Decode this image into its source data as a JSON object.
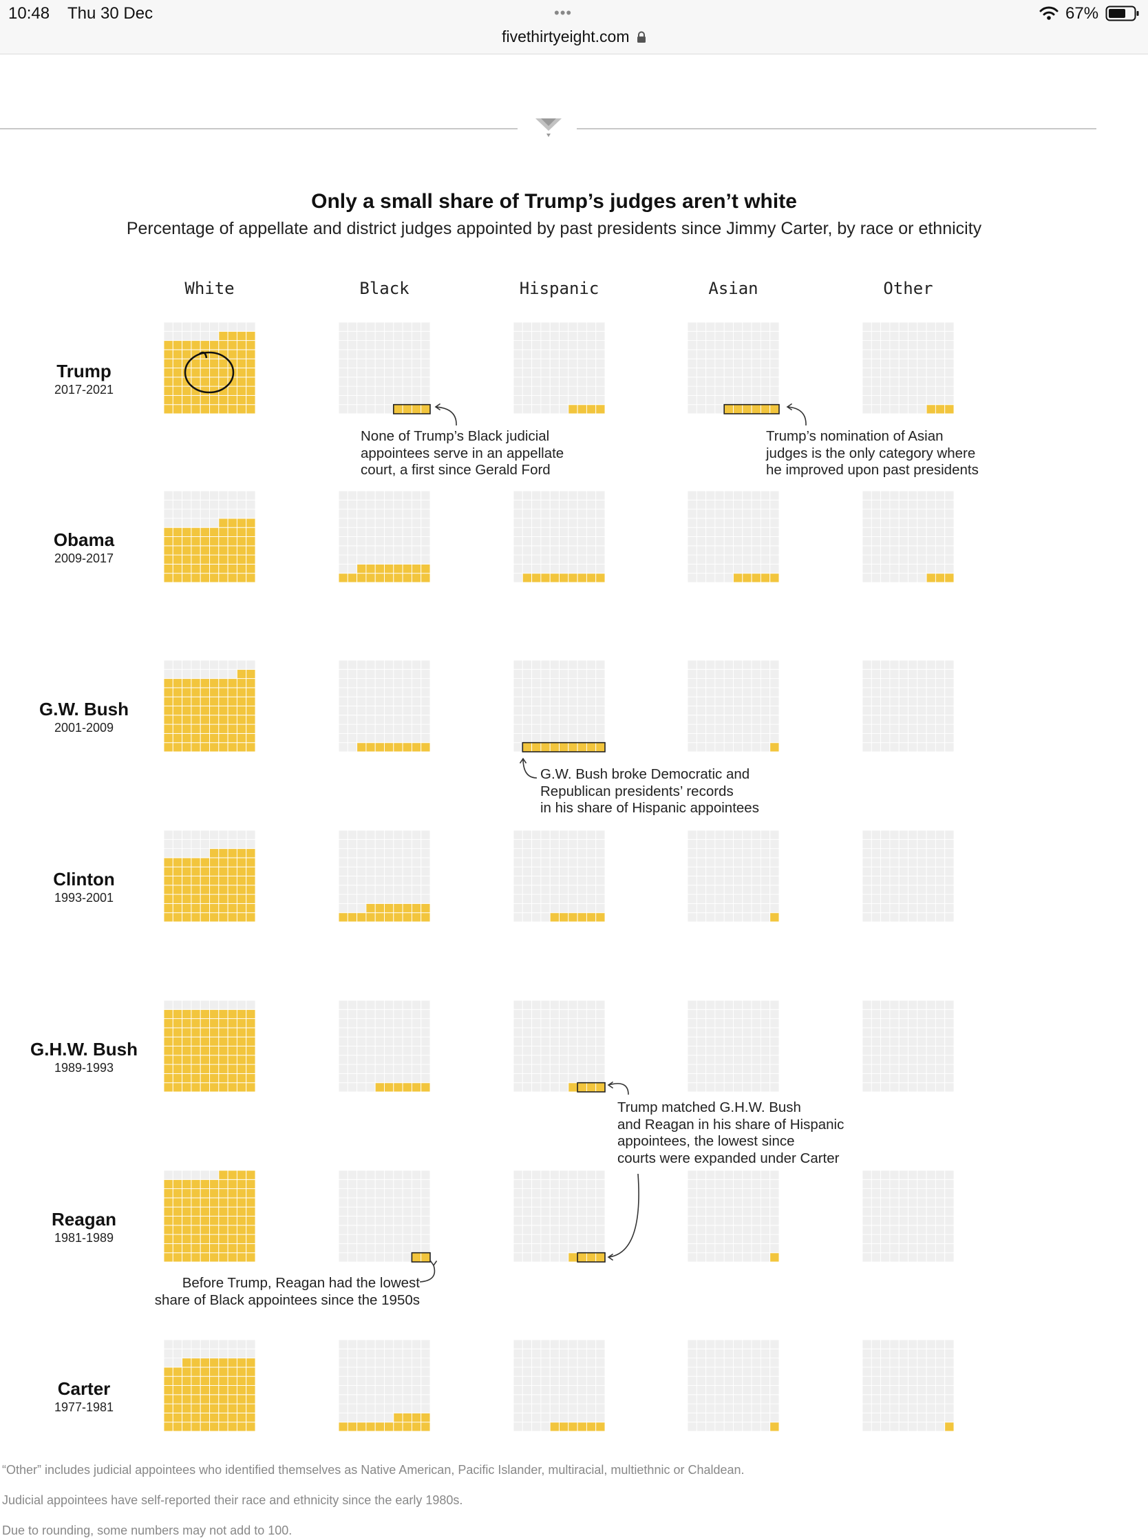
{
  "status_bar": {
    "time": "10:48",
    "date": "Thu 30 Dec",
    "dots": "•••",
    "url": "fivethirtyeight.com",
    "battery": "67%"
  },
  "chart_data": {
    "type": "waffle",
    "title": "Only a small share of Trump’s judges aren’t white",
    "subtitle": "Percentage of appellate and district judges appointed by past presidents since Jimmy Carter, by race or ethnicity",
    "categories": [
      "White",
      "Black",
      "Hispanic",
      "Asian",
      "Other"
    ],
    "grid": "10x10 squares per panel",
    "colors": {
      "filled": "#f2c53d",
      "empty": "#efefef",
      "border": "#ffffff"
    },
    "series": [
      {
        "name": "Trump",
        "years": "2017-2021",
        "values": [
          84,
          4,
          4,
          6,
          3
        ],
        "label": "84%",
        "circled": true
      },
      {
        "name": "Obama",
        "years": "2009-2017",
        "values": [
          64,
          18,
          9,
          5,
          3
        ],
        "label": "64%"
      },
      {
        "name": "G.W. Bush",
        "years": "2001-2009",
        "values": [
          82,
          8,
          9,
          1,
          0
        ],
        "label": "82%"
      },
      {
        "name": "Clinton",
        "years": "1993-2001",
        "values": [
          75,
          17,
          6,
          1,
          0
        ],
        "label": "75%"
      },
      {
        "name": "G.H.W. Bush",
        "years": "1989-1993",
        "values": [
          90,
          6,
          4,
          0,
          0
        ],
        "label": "90%"
      },
      {
        "name": "Reagan",
        "years": "1981-1989",
        "values": [
          94,
          2,
          4,
          1,
          0
        ],
        "label": "94%"
      },
      {
        "name": "Carter",
        "years": "1977-1981",
        "values": [
          78,
          14,
          6,
          1,
          1
        ],
        "label": "78%"
      }
    ],
    "annotations": [
      "None of Trump’s Black judicial appointees serve in an appellate court, a first since Gerald Ford",
      "Trump’s nomination of Asian judges is the only category where he improved upon past presidents",
      "G.W. Bush broke Democratic and Republican presidents’ records in his share of Hispanic appointees",
      "Trump matched G.H.W. Bush and Reagan in his share of Hispanic appointees, the lowest since courts were expanded under Carter",
      "Before Trump, Reagan had the lowest share of Black appointees since the 1950s"
    ],
    "notes": [
      "“Other” includes judicial appointees who identified themselves as Native American, Pacific Islander, multiracial, multiethnic or Chaldean.",
      "Judicial appointees have self-reported their race and ethnicity since the early 1980s.",
      "Due to rounding, some numbers may not add to 100."
    ]
  },
  "annotation_lines": {
    "a1": [
      "None of Trump’s Black judicial",
      "appointees serve in an appellate",
      "court, a first since Gerald Ford"
    ],
    "a2": [
      "Trump’s nomination of Asian",
      "judges is the only category where",
      "he improved upon past presidents"
    ],
    "a3": [
      "G.W. Bush broke Democratic and",
      "Republican presidents’ records",
      "in his share of Hispanic appointees"
    ],
    "a4": [
      "Trump matched G.H.W. Bush",
      "and Reagan in his share of Hispanic",
      "appointees, the lowest since",
      "courts were expanded under Carter"
    ],
    "a5": [
      "Before Trump, Reagan had the lowest",
      "share of Black appointees since the 1950s"
    ]
  }
}
